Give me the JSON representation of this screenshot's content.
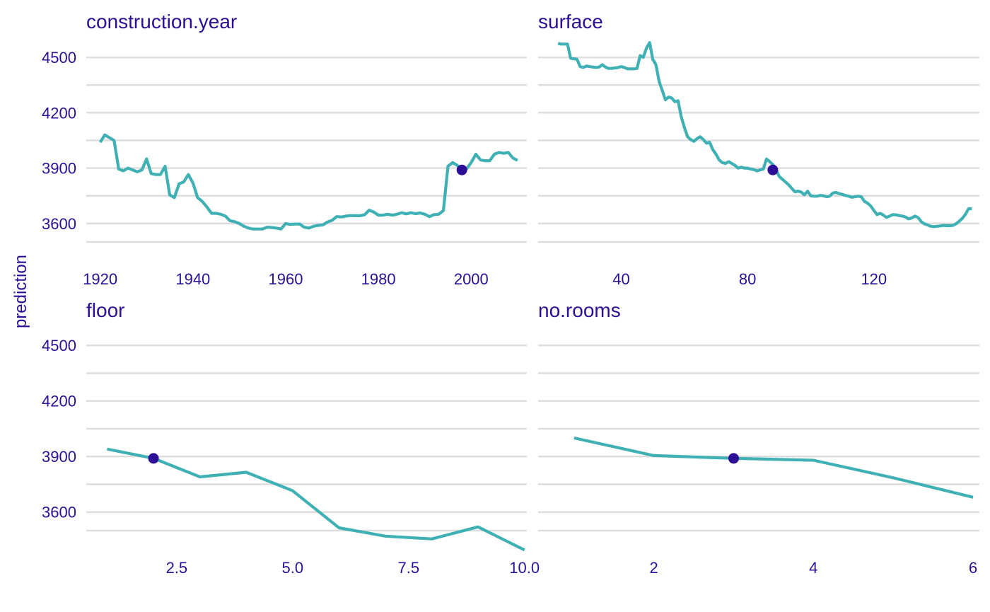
{
  "ylabel": "prediction",
  "chart_data": [
    {
      "type": "line",
      "title": "construction.year",
      "xlabel": "",
      "ylabel": "prediction",
      "xlim": [
        1917,
        2012
      ],
      "ylim": [
        3450,
        4600
      ],
      "xticks": [
        1920,
        1940,
        1960,
        1980,
        2000
      ],
      "xtick_labels": [
        "1920",
        "1940",
        "1960",
        "1980",
        "2000"
      ],
      "yticks": [
        3600,
        3900,
        4200,
        4500
      ],
      "ytick_labels": [
        "3600",
        "3900",
        "4200",
        "4500"
      ],
      "series": [
        {
          "x": [
            1920,
            1921,
            1923,
            1924,
            1925,
            1926,
            1927,
            1928,
            1929,
            1930,
            1931,
            1932,
            1933,
            1934,
            1935,
            1936,
            1937,
            1938,
            1939,
            1940,
            1941,
            1942,
            1943,
            1944,
            1945,
            1946,
            1947,
            1948,
            1949,
            1950,
            1951,
            1952,
            1953,
            1954,
            1955,
            1956,
            1957,
            1958,
            1959,
            1960,
            1961,
            1962,
            1963,
            1964,
            1965,
            1966,
            1967,
            1968,
            1969,
            1970,
            1971,
            1972,
            1973,
            1974,
            1975,
            1976,
            1977,
            1978,
            1979,
            1980,
            1981,
            1982,
            1983,
            1984,
            1985,
            1986,
            1987,
            1988,
            1989,
            1990,
            1991,
            1992,
            1993,
            1994,
            1995,
            1996,
            1997,
            1998,
            1999,
            2000,
            2001,
            2002,
            2003,
            2004,
            2005,
            2006,
            2007,
            2008,
            2009,
            2010
          ],
          "values": [
            4040,
            4080,
            4050,
            3895,
            3885,
            3900,
            3890,
            3880,
            3890,
            3950,
            3870,
            3865,
            3865,
            3910,
            3755,
            3740,
            3815,
            3825,
            3865,
            3820,
            3740,
            3720,
            3690,
            3655,
            3655,
            3650,
            3640,
            3615,
            3610,
            3600,
            3585,
            3575,
            3570,
            3570,
            3570,
            3580,
            3578,
            3575,
            3570,
            3600,
            3595,
            3597,
            3597,
            3580,
            3575,
            3585,
            3590,
            3592,
            3608,
            3617,
            3637,
            3635,
            3640,
            3643,
            3642,
            3642,
            3647,
            3672,
            3662,
            3645,
            3645,
            3650,
            3645,
            3650,
            3658,
            3652,
            3658,
            3653,
            3657,
            3650,
            3637,
            3648,
            3650,
            3670,
            3910,
            3930,
            3915,
            3890,
            3895,
            3930,
            3975,
            3945,
            3940,
            3940,
            3975,
            3985,
            3980,
            3985,
            3955,
            3942
          ]
        }
      ],
      "points": [
        {
          "x": 1998,
          "y": 3890
        }
      ]
    },
    {
      "type": "line",
      "title": "surface",
      "xlabel": "",
      "ylabel": "prediction",
      "xlim": [
        13.7,
        153.4
      ],
      "ylim": [
        3450,
        4600
      ],
      "xticks": [
        40,
        80,
        120
      ],
      "xtick_labels": [
        "40",
        "80",
        "120"
      ],
      "yticks": [
        3600,
        3900,
        4200,
        4500
      ],
      "ytick_labels": [
        "3600",
        "3900",
        "4200",
        "4500"
      ],
      "series": [
        {
          "x": [
            20,
            21,
            23,
            24,
            26,
            27,
            28,
            29,
            30,
            32,
            33,
            34,
            35,
            36,
            37,
            38,
            39,
            40,
            41,
            42,
            44,
            45,
            46,
            47,
            48,
            49,
            50,
            51,
            52,
            53,
            54,
            55,
            56,
            57,
            58,
            59,
            60,
            61,
            62,
            63,
            64,
            65,
            66,
            67,
            68,
            69,
            70,
            71,
            72,
            73,
            74,
            75,
            76,
            77,
            78,
            79,
            80,
            81,
            82,
            83,
            84,
            85,
            86,
            87,
            88,
            89,
            90,
            91,
            92,
            93,
            94,
            95,
            96,
            97,
            98,
            99,
            100,
            101,
            102,
            103,
            104,
            105,
            106,
            107,
            108,
            109,
            110,
            111,
            112,
            113,
            114,
            115,
            116,
            117,
            118,
            119,
            120,
            121,
            122,
            123,
            124,
            125,
            126,
            127,
            128,
            129,
            130,
            131,
            132,
            133,
            134,
            135,
            136,
            137,
            138,
            139,
            140,
            141,
            142,
            143,
            144,
            145,
            146,
            147,
            148,
            149,
            150,
            151
          ],
          "values": [
            4575,
            4572,
            4572,
            4495,
            4490,
            4450,
            4445,
            4453,
            4450,
            4445,
            4448,
            4460,
            4448,
            4440,
            4440,
            4443,
            4445,
            4450,
            4445,
            4438,
            4438,
            4440,
            4510,
            4500,
            4550,
            4580,
            4490,
            4460,
            4370,
            4320,
            4270,
            4285,
            4280,
            4260,
            4265,
            4180,
            4120,
            4070,
            4055,
            4045,
            4060,
            4070,
            4055,
            4035,
            4040,
            4000,
            3975,
            3945,
            3930,
            3925,
            3935,
            3925,
            3915,
            3900,
            3905,
            3900,
            3900,
            3895,
            3892,
            3885,
            3890,
            3895,
            3950,
            3935,
            3920,
            3895,
            3855,
            3840,
            3825,
            3810,
            3790,
            3772,
            3775,
            3770,
            3755,
            3775,
            3750,
            3748,
            3748,
            3752,
            3750,
            3745,
            3748,
            3765,
            3768,
            3762,
            3758,
            3752,
            3748,
            3742,
            3745,
            3748,
            3745,
            3720,
            3710,
            3695,
            3670,
            3648,
            3655,
            3645,
            3633,
            3640,
            3648,
            3647,
            3643,
            3640,
            3635,
            3625,
            3630,
            3640,
            3632,
            3610,
            3598,
            3592,
            3585,
            3583,
            3585,
            3587,
            3590,
            3588,
            3588,
            3590,
            3598,
            3612,
            3628,
            3650,
            3680,
            3680
          ]
        }
      ],
      "points": [
        {
          "x": 88,
          "y": 3890
        }
      ]
    },
    {
      "type": "line",
      "title": "floor",
      "xlabel": "",
      "ylabel": "prediction",
      "xlim": [
        0.55,
        10.05
      ],
      "ylim": [
        3450,
        4600
      ],
      "xticks": [
        2.5,
        5.0,
        7.5,
        10.0
      ],
      "xtick_labels": [
        "2.5",
        "5.0",
        "7.5",
        "10.0"
      ],
      "yticks": [
        3600,
        3900,
        4200,
        4500
      ],
      "ytick_labels": [
        "3600",
        "3900",
        "4200",
        "4500"
      ],
      "series": [
        {
          "x": [
            1,
            2,
            3,
            4,
            5,
            6,
            7,
            8,
            9,
            10
          ],
          "values": [
            3940,
            3890,
            3790,
            3815,
            3715,
            3515,
            3470,
            3455,
            3520,
            3395
          ]
        }
      ],
      "points": [
        {
          "x": 2,
          "y": 3890
        }
      ]
    },
    {
      "type": "line",
      "title": "no.rooms",
      "xlabel": "",
      "ylabel": "prediction",
      "xlim": [
        0.55,
        6.08
      ],
      "ylim": [
        3450,
        4600
      ],
      "xticks": [
        2,
        4,
        6
      ],
      "xtick_labels": [
        "2",
        "4",
        "6"
      ],
      "yticks": [
        3600,
        3900,
        4200,
        4500
      ],
      "ytick_labels": [
        "3600",
        "3900",
        "4200",
        "4500"
      ],
      "series": [
        {
          "x": [
            1,
            2,
            3,
            4,
            5,
            6
          ],
          "values": [
            4000,
            3905,
            3890,
            3880,
            3785,
            3680
          ]
        }
      ],
      "points": [
        {
          "x": 3,
          "y": 3890
        }
      ]
    }
  ]
}
